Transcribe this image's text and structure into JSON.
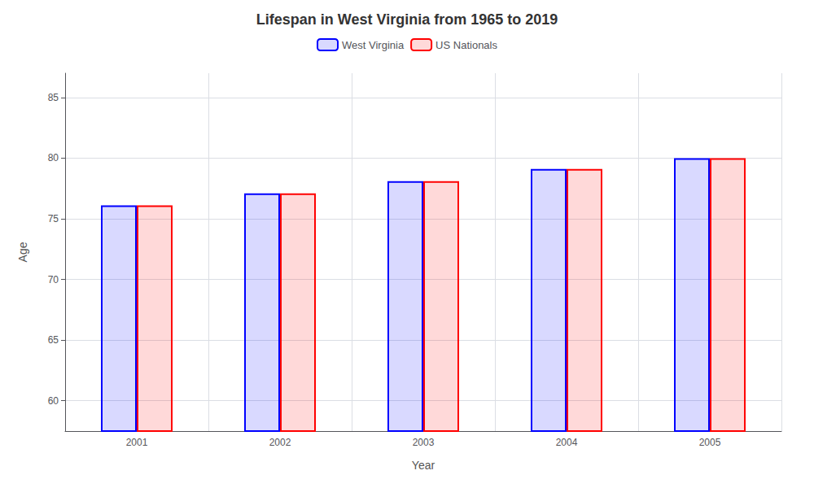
{
  "chart_data": {
    "type": "bar",
    "title": "Lifespan in West Virginia from 1965 to 2019",
    "x_label": "Year",
    "y_label": "Age",
    "categories": [
      "2001",
      "2002",
      "2003",
      "2004",
      "2005"
    ],
    "series": [
      {
        "name": "West Virginia",
        "color": "#0000ff",
        "values": [
          76.1,
          77.1,
          78.1,
          79.1,
          80.0
        ]
      },
      {
        "name": "US Nationals",
        "color": "#ff0000",
        "values": [
          76.1,
          77.1,
          78.1,
          79.1,
          80.0
        ]
      }
    ],
    "ylim": [
      57.5,
      87
    ],
    "yticks": [
      60,
      65,
      70,
      75,
      80,
      85
    ],
    "grid": true,
    "legend": "top"
  }
}
